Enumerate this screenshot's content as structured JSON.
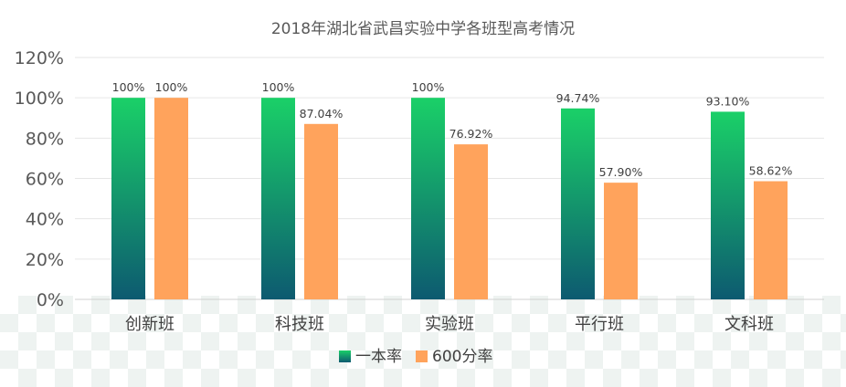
{
  "chart_data": {
    "type": "bar",
    "title": "2018年湖北省武昌实验中学各班型高考情况",
    "categories": [
      "创新班",
      "科技班",
      "实验班",
      "平行班",
      "文科班"
    ],
    "series": [
      {
        "name": "一本率",
        "values": [
          100,
          100,
          100,
          94.74,
          93.1
        ],
        "labels": [
          "100%",
          "100%",
          "100%",
          "94.74%",
          "93.10%"
        ],
        "color_top": "#1ad068",
        "color_bottom": "#0d5a70"
      },
      {
        "name": "600分率",
        "values": [
          100,
          87.04,
          76.92,
          57.9,
          58.62
        ],
        "labels": [
          "100%",
          "87.04%",
          "76.92%",
          "57.90%",
          "58.62%"
        ],
        "color": "#ffa35c"
      }
    ],
    "ylim": [
      0,
      120
    ],
    "yticks": [
      "0%",
      "20%",
      "40%",
      "60%",
      "80%",
      "100%",
      "120%"
    ],
    "grid": true,
    "legend_position": "bottom-center"
  }
}
